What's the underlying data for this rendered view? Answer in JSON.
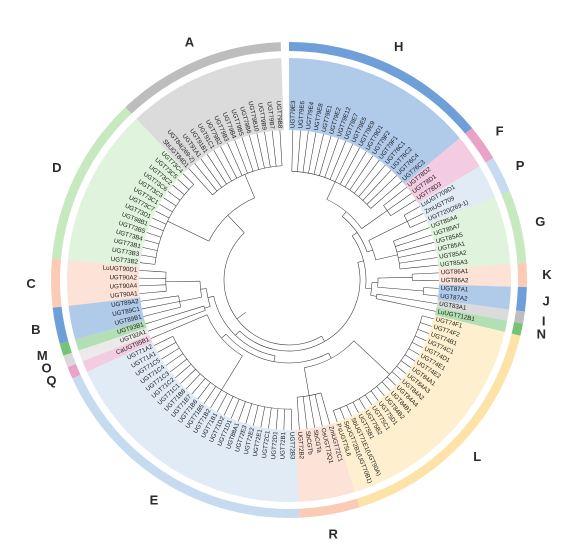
{
  "clades": [
    {
      "letter": "H",
      "color": "#6f9fd8",
      "leaves": [
        "UGT79E3",
        "UGT79E6",
        "UGT79E4",
        "UGT79E8",
        "UGT79E1",
        "UGT79E2",
        "UGT79E12",
        "UGT79E7",
        "UGT79E5",
        "UGT79E9",
        "UGT79D1",
        "UGT79F2",
        "UGT79F1",
        "UGT76C1",
        "UGT76C2",
        "UGT76C4",
        "UGT76C3"
      ]
    },
    {
      "letter": "F",
      "color": "#e9a3c9",
      "leaves": [
        "UGT78D2",
        "UGT78D1",
        "UGT78D3"
      ]
    },
    {
      "letter": "P",
      "color": "#c6dbef",
      "leaves": [
        "LuUGT709D1",
        "ZmUGT709",
        "UGT720(269-1)"
      ]
    },
    {
      "letter": "G",
      "color": "#c7e9c0",
      "leaves": [
        "UGT85A4",
        "UGT85A7",
        "UGT85A5",
        "UGT85A1",
        "UGT85A2",
        "UGT85A3"
      ]
    },
    {
      "letter": "K",
      "color": "#fbcbb6",
      "leaves": [
        "UGT86A1",
        "UGT86A2"
      ]
    },
    {
      "letter": "J",
      "color": "#6f9fd8",
      "leaves": [
        "UGT87A1",
        "UGT87A2"
      ]
    },
    {
      "letter": "I",
      "color": "#bdbdbd",
      "leaves": [
        "UGT83A1"
      ]
    },
    {
      "letter": "N",
      "color": "#74c476",
      "leaves": [
        "LuUGT712B1"
      ]
    },
    {
      "letter": "L",
      "color": "#fde3a7",
      "leaves": [
        "UGT74F1",
        "UGT74F2",
        "UGT74B1",
        "UGT74C1",
        "UGT74D1",
        "UGT74E1",
        "UGT74E2",
        "UGT84A1",
        "UGT84A3",
        "UGT84A2",
        "UGT84A4",
        "UGT84B1",
        "UGT84B2",
        "UGT75D1",
        "UGT75C1",
        "UGT75B2",
        "UGT75B1",
        "SbUGT71E1(UGT90A)",
        "SpUGT72B1(UGT70B1)",
        "PsUGT75L6"
      ]
    },
    {
      "letter": "R",
      "color": "#fbcbb6",
      "leaves": [
        "ZmUGT72C1",
        "OsUGT72Q1",
        "SbCGTa",
        "SbCGTb",
        "UGT72B2"
      ]
    },
    {
      "letter": "E",
      "color": "#c6dbef",
      "leaves": [
        "UGT72B3",
        "UGT72B1",
        "UGT72D1",
        "UGT72C1",
        "UGT72E1",
        "UGT72E2",
        "UGT72E3",
        "UGT88A1",
        "UGT71D1",
        "UGT71D2",
        "UGT71B1",
        "UGT71B2",
        "UGT71B5",
        "UGT71B6",
        "UGT71B7",
        "UGT71B8",
        "UGT71C1",
        "UGT71C2",
        "UGT71C3",
        "UGT71C4",
        "UGT71C5",
        "UGT71A1",
        "UGT71A2"
      ]
    },
    {
      "letter": "Q",
      "color": "#e9a3c9",
      "leaves": [
        "CaUGT95B1"
      ]
    },
    {
      "letter": "O",
      "color": "#d9d9d9",
      "leaves": [
        "UGT92A1"
      ]
    },
    {
      "letter": "M",
      "color": "#74c476",
      "leaves": [
        "UGT93B1"
      ]
    },
    {
      "letter": "B",
      "color": "#6f9fd8",
      "leaves": [
        "UGT89B1",
        "UGT89C1",
        "UGT89A2"
      ]
    },
    {
      "letter": "C",
      "color": "#fbcbb6",
      "leaves": [
        "UGT90A1",
        "UGT90A4",
        "UGT90A2",
        "LuUGT90D1"
      ]
    },
    {
      "letter": "D",
      "color": "#c7e9c0",
      "leaves": [
        "UGT73B2",
        "UGT73B3",
        "UGT73B1",
        "UGT73B4",
        "UGT73B5",
        "UGT98B1",
        "UGT73D1",
        "UGT73C7",
        "UGT73C1",
        "UGT73C3",
        "UGT73C6",
        "UGT73C2",
        "UGT73C5",
        "UGT73C4"
      ]
    },
    {
      "letter": "A",
      "color": "#bdbdbd",
      "leaves": [
        "SbUGT84D1",
        "UGT84(269-2)",
        "UGT91A1",
        "UGT91B1",
        "UGT91C1",
        "UGT79B2",
        "UGT79B3",
        "UGT79B4",
        "UGT79B5",
        "UGT79B6",
        "UGT79B10",
        "UGT79B9",
        "UGT79B7",
        "UGT79B8"
      ]
    }
  ]
}
